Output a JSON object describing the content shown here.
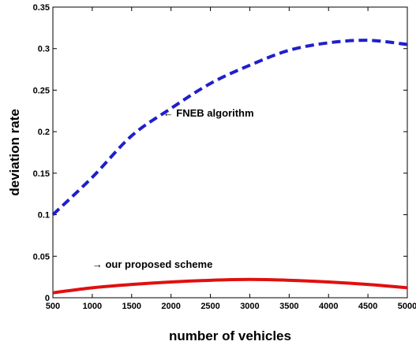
{
  "chart_data": {
    "type": "line",
    "title": "",
    "xlabel": "number of vehicles",
    "ylabel": "deviation rate",
    "xlim": [
      500,
      5000
    ],
    "ylim": [
      0,
      0.35
    ],
    "xticks": [
      500,
      1000,
      1500,
      2000,
      2500,
      3000,
      3500,
      4000,
      4500,
      5000
    ],
    "yticks": [
      0,
      0.05,
      0.1,
      0.15,
      0.2,
      0.25,
      0.3,
      0.35
    ],
    "xtick_labels": [
      "500",
      "1000",
      "1500",
      "2000",
      "2500",
      "3000",
      "3500",
      "4000",
      "4500",
      "5000"
    ],
    "ytick_labels": [
      "0",
      "0.05",
      "0.1",
      "0.15",
      "0.2",
      "0.25",
      "0.3",
      "0.35"
    ],
    "grid": false,
    "legend": "none",
    "series": [
      {
        "color": "#1f1fcc",
        "style": "dashed",
        "x": [
          500,
          1000,
          1500,
          2000,
          2500,
          3000,
          3500,
          4000,
          4500,
          5000
        ],
        "y": [
          0.1,
          0.145,
          0.195,
          0.228,
          0.258,
          0.28,
          0.298,
          0.307,
          0.31,
          0.305
        ]
      },
      {
        "color": "#e01010",
        "style": "solid",
        "x": [
          500,
          1000,
          1500,
          2000,
          2500,
          3000,
          3500,
          4000,
          4500,
          5000
        ],
        "y": [
          0.006,
          0.012,
          0.016,
          0.019,
          0.021,
          0.022,
          0.021,
          0.019,
          0.016,
          0.012
        ]
      }
    ],
    "annotations": [
      {
        "text": "← FNEB algorithm",
        "x": 1900,
        "y": 0.218
      },
      {
        "text": "→ our proposed scheme",
        "x": 1000,
        "y": 0.036
      }
    ]
  }
}
